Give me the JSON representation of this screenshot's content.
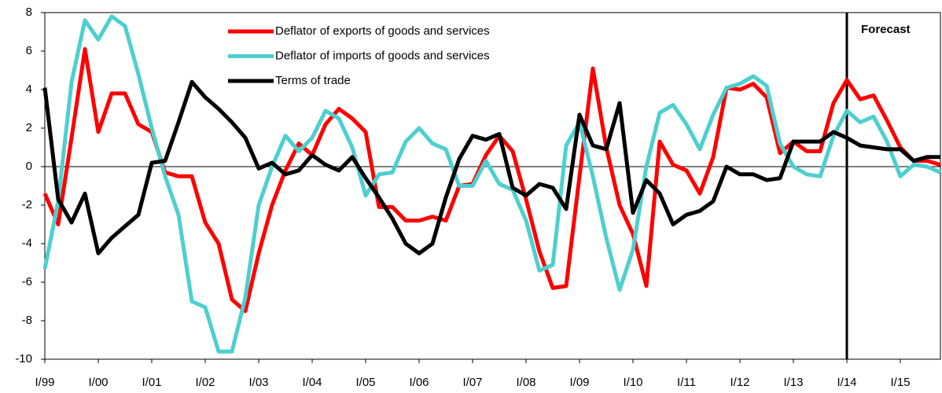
{
  "chart_data": {
    "type": "line",
    "categories": [
      "I/99",
      null,
      null,
      null,
      "I/00",
      null,
      null,
      null,
      "I/01",
      null,
      null,
      null,
      "I/02",
      null,
      null,
      null,
      "I/03",
      null,
      null,
      null,
      "I/04",
      null,
      null,
      null,
      "I/05",
      null,
      null,
      null,
      "I/06",
      null,
      null,
      null,
      "I/07",
      null,
      null,
      null,
      "I/08",
      null,
      null,
      null,
      "I/09",
      null,
      null,
      null,
      "I/10",
      null,
      null,
      null,
      "I/11",
      null,
      null,
      null,
      "I/12",
      null,
      null,
      null,
      "I/13",
      null,
      null,
      null,
      "I/14",
      null,
      null,
      null,
      "I/15",
      null,
      null,
      null
    ],
    "series": [
      {
        "name": "Deflator of exports of goods and services",
        "color": "#ff0000",
        "values": [
          -1.4,
          -3.0,
          1.5,
          6.1,
          1.8,
          3.8,
          3.8,
          2.2,
          1.8,
          -0.3,
          -0.5,
          -0.5,
          -2.9,
          -4.0,
          -6.9,
          -7.5,
          -4.5,
          -2.0,
          -0.2,
          1.2,
          0.6,
          2.2,
          3.0,
          2.5,
          1.8,
          -2.1,
          -2.1,
          -2.8,
          -2.8,
          -2.6,
          -2.8,
          -1.0,
          -0.9,
          0.6,
          1.6,
          0.8,
          -1.7,
          -4.4,
          -6.3,
          -6.2,
          -0.5,
          5.1,
          1.0,
          -2.0,
          -3.5,
          -6.2,
          1.3,
          0.1,
          -0.2,
          -1.4,
          0.5,
          4.1,
          4.0,
          4.3,
          3.6,
          0.7,
          1.3,
          0.8,
          0.8,
          3.3,
          4.5,
          3.5,
          3.7,
          2.4,
          1.0,
          0.3,
          0.3,
          0.1
        ]
      },
      {
        "name": "Deflator of imports of goods and services",
        "color": "#4dcfcf",
        "values": [
          -5.3,
          -1.8,
          4.4,
          7.6,
          6.6,
          7.8,
          7.3,
          4.8,
          2.0,
          -0.5,
          -2.5,
          -7.0,
          -7.3,
          -9.6,
          -9.6,
          -6.8,
          -2.0,
          0.0,
          1.6,
          0.8,
          1.5,
          2.9,
          2.5,
          1.0,
          -1.5,
          -0.4,
          -0.3,
          1.3,
          2.0,
          1.2,
          0.9,
          -1.0,
          -1.0,
          0.3,
          -0.9,
          -1.2,
          -2.8,
          -5.4,
          -5.1,
          1.1,
          2.3,
          -0.5,
          -3.7,
          -6.4,
          -4.3,
          0.0,
          2.8,
          3.2,
          2.2,
          0.9,
          2.7,
          4.1,
          4.3,
          4.7,
          4.2,
          1.2,
          0.0,
          -0.4,
          -0.5,
          1.6,
          2.9,
          2.3,
          2.6,
          1.3,
          -0.5,
          0.1,
          0.0,
          -0.3
        ]
      },
      {
        "name": "Terms of trade",
        "color": "#000000",
        "values": [
          4.1,
          -1.7,
          -2.9,
          -1.4,
          -4.5,
          -3.7,
          -3.1,
          -2.5,
          0.2,
          0.3,
          2.3,
          4.4,
          3.6,
          3.0,
          2.3,
          1.5,
          -0.1,
          0.2,
          -0.4,
          -0.2,
          0.6,
          0.1,
          -0.2,
          0.5,
          -0.6,
          -1.6,
          -2.7,
          -4.0,
          -4.5,
          -4.0,
          -1.6,
          0.4,
          1.6,
          1.4,
          1.7,
          -1.1,
          -1.5,
          -0.9,
          -1.1,
          -2.2,
          2.7,
          1.1,
          0.9,
          3.3,
          -2.4,
          -0.7,
          -1.4,
          -3.0,
          -2.5,
          -2.3,
          -1.8,
          0.0,
          -0.4,
          -0.4,
          -0.7,
          -0.6,
          1.3,
          1.3,
          1.3,
          1.8,
          1.5,
          1.1,
          1.0,
          0.9,
          0.9,
          0.3,
          0.5,
          0.5
        ]
      }
    ],
    "annotation": {
      "text": "Forecast",
      "x": "I/14"
    },
    "ylim": [
      -10,
      8
    ],
    "yticks": [
      -10,
      -8,
      -6,
      -4,
      -2,
      0,
      2,
      4,
      6,
      8
    ],
    "grid": false,
    "legend": "top"
  }
}
